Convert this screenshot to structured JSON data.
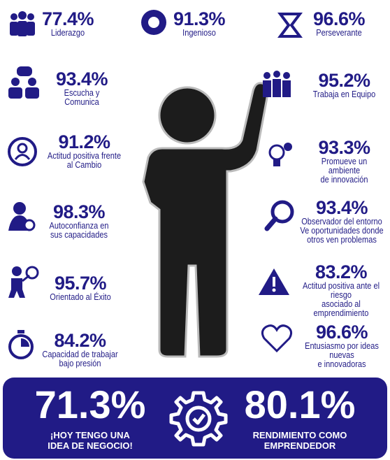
{
  "items": [
    {
      "percent": "77.4%",
      "label": [
        "Liderazgo"
      ]
    },
    {
      "percent": "91.3%",
      "label": [
        "Ingenioso"
      ]
    },
    {
      "percent": "96.6%",
      "label": [
        "Perseverante"
      ]
    },
    {
      "percent": "93.4%",
      "label": [
        "Escucha y Comunica"
      ]
    },
    {
      "percent": "95.2%",
      "label": [
        "Trabaja en Equipo"
      ]
    },
    {
      "percent": "91.2%",
      "label": [
        "Actitud positiva frente",
        "al Cambio"
      ]
    },
    {
      "percent": "93.3%",
      "label": [
        "Promueve un ambiente",
        "de innovación"
      ]
    },
    {
      "percent": "98.3%",
      "label": [
        "Autoconfianza en",
        "sus capacidades"
      ]
    },
    {
      "percent": "93.4%",
      "label": [
        "Observador del entorno",
        "Ve oportunidades donde",
        "otros ven problemas"
      ]
    },
    {
      "percent": "95.7%",
      "label": [
        "Orientado al Éxito"
      ]
    },
    {
      "percent": "83.2%",
      "label": [
        "Actitud positiva ante el riesgo",
        "asociado al emprendimiento"
      ]
    },
    {
      "percent": "84.2%",
      "label": [
        "Capacidad de trabajar",
        "bajo presión"
      ]
    },
    {
      "percent": "96.6%",
      "label": [
        "Entusiasmo por ideas nuevas",
        "e innovadoras"
      ]
    }
  ],
  "banner": [
    {
      "percent": "71.3%",
      "label": [
        "¡HOY TENGO UNA",
        "IDEA DE NEGOCIO!"
      ]
    },
    {
      "percent": "80.1%",
      "label": [
        "RENDIMIENTO COMO",
        "EMPRENDEDOR"
      ]
    }
  ]
}
